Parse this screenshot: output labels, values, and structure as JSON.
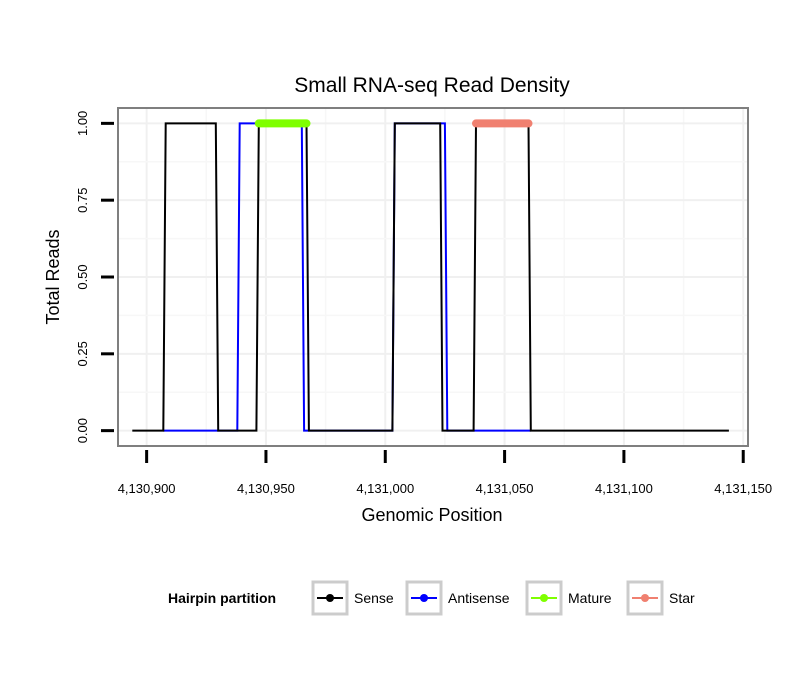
{
  "chart_data": {
    "type": "line",
    "title": "Small RNA-seq Read Density",
    "xlabel": "Genomic Position",
    "ylabel": "Total Reads",
    "xlim": [
      4130888,
      4131152
    ],
    "ylim": [
      -0.05,
      1.05
    ],
    "x_ticks": [
      4130900,
      4130950,
      4131000,
      4131050,
      4131100,
      4131150
    ],
    "x_tick_labels": [
      "4,130,900",
      "4,130,950",
      "4,131,000",
      "4,131,050",
      "4,131,100",
      "4,131,150"
    ],
    "y_ticks": [
      0,
      0.25,
      0.5,
      0.75,
      1.0
    ],
    "y_tick_labels": [
      "0.00",
      "0.25",
      "0.50",
      "0.75",
      "1.00"
    ],
    "grid": true,
    "legend": {
      "title": "Hairpin partition",
      "position": "bottom",
      "entries": [
        {
          "name": "Sense",
          "color": "#000000"
        },
        {
          "name": "Antisense",
          "color": "#0000ff"
        },
        {
          "name": "Mature",
          "color": "#7fff00"
        },
        {
          "name": "Star",
          "color": "#f08070"
        }
      ]
    },
    "series": [
      {
        "name": "Sense",
        "color": "#000000",
        "x": [
          4130894,
          4130907,
          4130908,
          4130929,
          4130930,
          4130946,
          4130947,
          4130967,
          4130968,
          4131003,
          4131004,
          4131023,
          4131024,
          4131037,
          4131038,
          4131060,
          4131061,
          4131144
        ],
        "y": [
          0,
          0,
          1,
          1,
          0,
          0,
          1,
          1,
          0,
          0,
          1,
          1,
          0,
          0,
          1,
          1,
          0,
          0
        ]
      },
      {
        "name": "Antisense",
        "color": "#0000ff",
        "x": [
          4130907,
          4130938,
          4130939,
          4130965,
          4130966,
          4131003,
          4131004,
          4131025,
          4131026,
          4131061
        ],
        "y": [
          0,
          0,
          1,
          1,
          0,
          0,
          1,
          1,
          0,
          0
        ]
      },
      {
        "name": "Mature",
        "color": "#7fff00",
        "x": [
          4130947,
          4130967
        ],
        "y": [
          1,
          1
        ]
      },
      {
        "name": "Star",
        "color": "#f08070",
        "x": [
          4131038,
          4131060
        ],
        "y": [
          1,
          1
        ]
      }
    ]
  }
}
